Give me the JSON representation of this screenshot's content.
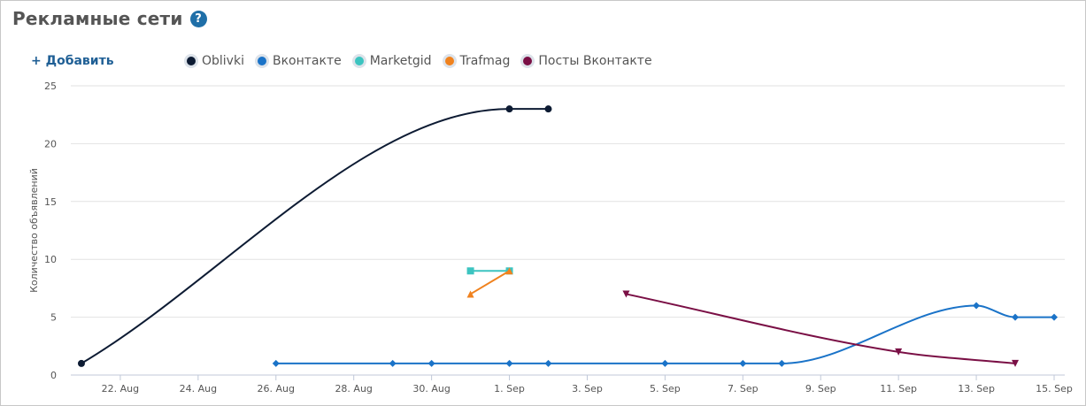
{
  "header": {
    "title": "Рекламные сети",
    "help_icon": "question-circle-icon",
    "help_symbol": "?"
  },
  "toolbar": {
    "add_label": "+ Добавить"
  },
  "legend": [
    {
      "name": "Oblivki",
      "color": "#0d1b33"
    },
    {
      "name": "Вконтакте",
      "color": "#1a73c8"
    },
    {
      "name": "Marketgid",
      "color": "#3cc4c0"
    },
    {
      "name": "Trafmag",
      "color": "#f0821e"
    },
    {
      "name": "Посты Вконтакте",
      "color": "#7a0f45"
    }
  ],
  "chart_data": {
    "type": "line",
    "title": "",
    "xlabel": "",
    "ylabel": "Количество объявлений",
    "ylim": [
      0,
      25
    ],
    "yticks": [
      0,
      5,
      10,
      15,
      20,
      25
    ],
    "xlim": [
      "2015-08-20",
      "2015-09-15"
    ],
    "xtick_labels": [
      {
        "date": "2015-08-22",
        "label": "22. Aug"
      },
      {
        "date": "2015-08-24",
        "label": "24. Aug"
      },
      {
        "date": "2015-08-26",
        "label": "26. Aug"
      },
      {
        "date": "2015-08-28",
        "label": "28. Aug"
      },
      {
        "date": "2015-08-30",
        "label": "30. Aug"
      },
      {
        "date": "2015-09-01",
        "label": "1. Sep"
      },
      {
        "date": "2015-09-03",
        "label": "3. Sep"
      },
      {
        "date": "2015-09-05",
        "label": "5. Sep"
      },
      {
        "date": "2015-09-07",
        "label": "7. Sep"
      },
      {
        "date": "2015-09-09",
        "label": "9. Sep"
      },
      {
        "date": "2015-09-11",
        "label": "11. Sep"
      },
      {
        "date": "2015-09-13",
        "label": "13. Sep"
      },
      {
        "date": "2015-09-15",
        "label": "15. Sep"
      }
    ],
    "grid": true,
    "series": [
      {
        "name": "Oblivki",
        "color": "#0d1b33",
        "marker": "circle",
        "smooth": true,
        "points": [
          [
            "2015-08-21",
            1
          ],
          [
            "2015-09-01",
            23
          ],
          [
            "2015-09-02",
            23
          ]
        ]
      },
      {
        "name": "Вконтакте",
        "color": "#1a73c8",
        "marker": "diamond",
        "smooth": true,
        "points": [
          [
            "2015-08-26",
            1
          ],
          [
            "2015-08-29",
            1
          ],
          [
            "2015-08-30",
            1
          ],
          [
            "2015-09-01",
            1
          ],
          [
            "2015-09-02",
            1
          ],
          [
            "2015-09-05",
            1
          ],
          [
            "2015-09-07",
            1
          ],
          [
            "2015-09-08",
            1
          ],
          [
            "2015-09-13",
            6
          ],
          [
            "2015-09-14",
            5
          ],
          [
            "2015-09-15",
            5
          ]
        ]
      },
      {
        "name": "Marketgid",
        "color": "#3cc4c0",
        "marker": "square",
        "smooth": false,
        "points": [
          [
            "2015-08-31",
            9
          ],
          [
            "2015-09-01",
            9
          ]
        ]
      },
      {
        "name": "Trafmag",
        "color": "#f0821e",
        "marker": "triangle",
        "smooth": false,
        "points": [
          [
            "2015-08-31",
            7
          ],
          [
            "2015-09-01",
            9
          ]
        ]
      },
      {
        "name": "Посты Вконтакте",
        "color": "#7a0f45",
        "marker": "triangle-down",
        "smooth": true,
        "points": [
          [
            "2015-09-04",
            7
          ],
          [
            "2015-09-11",
            2
          ],
          [
            "2015-09-14",
            1
          ]
        ]
      }
    ]
  }
}
